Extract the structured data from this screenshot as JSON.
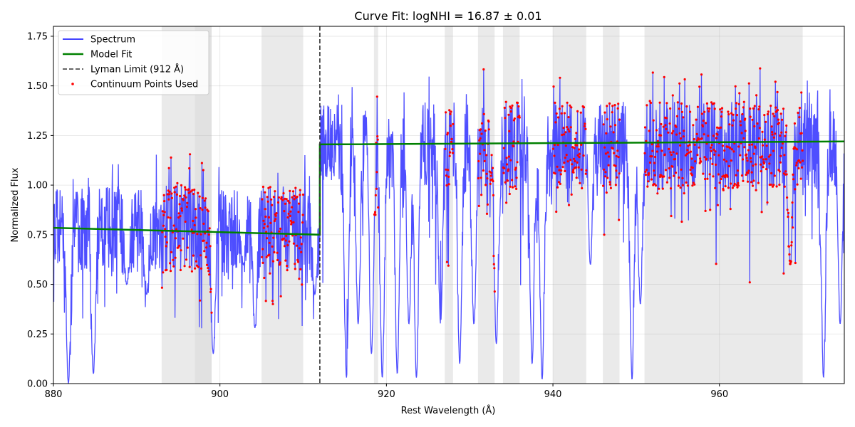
{
  "chart_data": {
    "type": "line",
    "title": "Curve Fit: logNHI = 16.87 ± 0.01",
    "xlabel": "Rest Wavelength (Å)",
    "ylabel": "Normalized Flux",
    "xlim": [
      880,
      975
    ],
    "ylim": [
      0,
      1.8
    ],
    "xticks": [
      880,
      900,
      920,
      940,
      960
    ],
    "xtick_labels": [
      "880",
      "900",
      "920",
      "940",
      "960"
    ],
    "yticks": [
      0.0,
      0.25,
      0.5,
      0.75,
      1.0,
      1.25,
      1.5,
      1.75
    ],
    "ytick_labels": [
      "0.00",
      "0.25",
      "0.50",
      "0.75",
      "1.00",
      "1.25",
      "1.50",
      "1.75"
    ],
    "grid": true,
    "legend_position": "top-left",
    "colors": {
      "spectrum": "#4444ff",
      "model": "#008000",
      "lyman": "#333333",
      "continuum": "#ff0000",
      "shade": "#d9d9d9"
    },
    "shaded_regions": [
      [
        893,
        899
      ],
      [
        897,
        899
      ],
      [
        905,
        910
      ],
      [
        918.5,
        919
      ],
      [
        927,
        928
      ],
      [
        931,
        933
      ],
      [
        934,
        936
      ],
      [
        940,
        944
      ],
      [
        946,
        948
      ],
      [
        951,
        970
      ]
    ],
    "series": [
      {
        "name": "Spectrum",
        "kind": "line",
        "approx_level_below_912": 0.78,
        "approx_level_above_912": 1.2,
        "approx_scatter": 0.22
      },
      {
        "name": "Model Fit",
        "kind": "line",
        "x": [
          880,
          912,
          912,
          975
        ],
        "y": [
          0.785,
          0.75,
          1.205,
          1.22
        ]
      },
      {
        "name": "Lyman Limit (912 Å)",
        "kind": "vline",
        "x": 912
      },
      {
        "name": "Continuum Points Used",
        "kind": "scatter",
        "approx_level_below_912": 0.78,
        "approx_level_above_912": 1.22
      }
    ],
    "absorption_features": [
      {
        "x": 881.8,
        "depth": 0.0
      },
      {
        "x": 884.8,
        "depth": 0.05
      },
      {
        "x": 888.8,
        "depth": 0.5
      },
      {
        "x": 891.2,
        "depth": 0.45
      },
      {
        "x": 899.2,
        "depth": 0.15
      },
      {
        "x": 902.8,
        "depth": 0.6
      },
      {
        "x": 904.2,
        "depth": 0.28
      },
      {
        "x": 911.4,
        "depth": 0.45
      },
      {
        "x": 915.2,
        "depth": 0.03
      },
      {
        "x": 916.6,
        "depth": 0.3
      },
      {
        "x": 918.2,
        "depth": 0.15
      },
      {
        "x": 919.5,
        "depth": 0.03
      },
      {
        "x": 921.3,
        "depth": 0.05
      },
      {
        "x": 922.7,
        "depth": 0.3
      },
      {
        "x": 923.6,
        "depth": 0.03
      },
      {
        "x": 926.5,
        "depth": 0.3
      },
      {
        "x": 928.8,
        "depth": 0.1
      },
      {
        "x": 930.5,
        "depth": 0.3
      },
      {
        "x": 933.2,
        "depth": 0.2
      },
      {
        "x": 937.5,
        "depth": 0.1
      },
      {
        "x": 938.7,
        "depth": 0.02
      },
      {
        "x": 944.5,
        "depth": 0.6
      },
      {
        "x": 949.5,
        "depth": 0.02
      },
      {
        "x": 950.5,
        "depth": 0.4
      },
      {
        "x": 968.5,
        "depth": 0.6
      },
      {
        "x": 972.5,
        "depth": 0.03
      },
      {
        "x": 974.5,
        "depth": 0.3
      }
    ]
  }
}
